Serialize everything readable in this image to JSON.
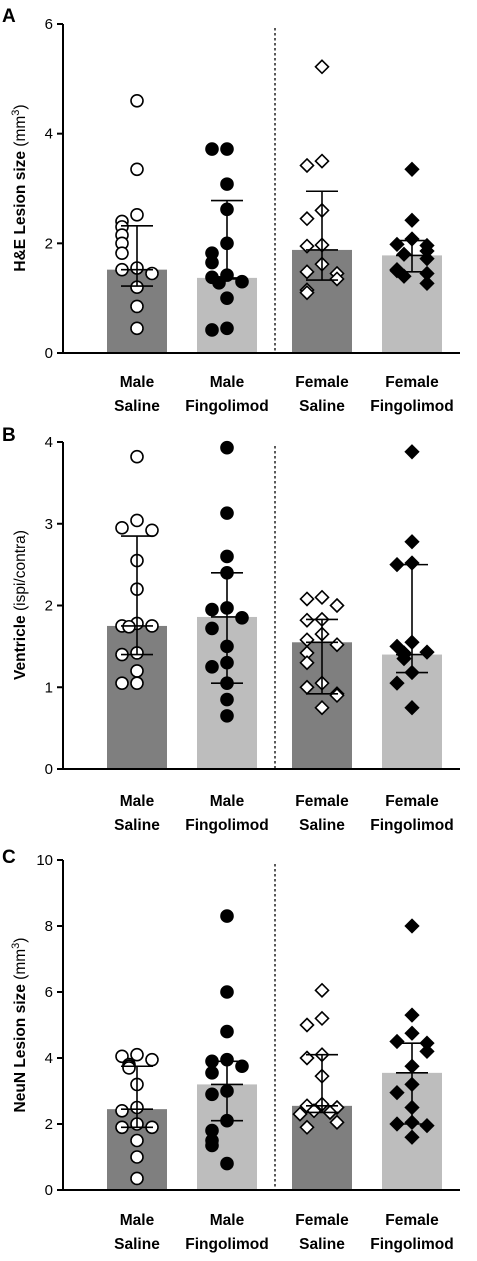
{
  "chart_data": [
    {
      "type": "bar",
      "panel": "A",
      "ylabel_bold": "H&E Lesion size",
      "ylabel_unit": "(mm",
      "ylabel_sup": "3",
      "ylabel_close": ")",
      "ylim": [
        0,
        6
      ],
      "yticks": [
        "0",
        "2",
        "4",
        "6"
      ],
      "categories": [
        {
          "line1": "Male",
          "line2": "Saline"
        },
        {
          "line1": "Male",
          "line2": "Fingolimod"
        },
        {
          "line1": "Female",
          "line2": "Saline"
        },
        {
          "line1": "Female",
          "line2": "Fingolimod"
        }
      ],
      "bar_colors": [
        "#7f7f7f",
        "#bdbdbd",
        "#7f7f7f",
        "#bdbdbd"
      ],
      "marker_styles": [
        "open-circle",
        "filled-circle",
        "open-diamond",
        "filled-diamond"
      ],
      "divider": "dotted",
      "groups": [
        {
          "median": 1.52,
          "q1": 1.22,
          "q3": 2.32,
          "points": [
            4.6,
            3.35,
            2.52,
            2.4,
            2.3,
            2.15,
            2.0,
            1.82,
            1.55,
            1.52,
            1.45,
            1.2,
            0.85,
            0.45
          ]
        },
        {
          "median": 1.37,
          "q1": 1.35,
          "q3": 2.78,
          "points": [
            3.72,
            3.72,
            3.08,
            2.62,
            2.0,
            1.82,
            1.65,
            1.42,
            1.38,
            1.3,
            1.28,
            1.0,
            0.45,
            0.42
          ]
        },
        {
          "median": 1.88,
          "q1": 1.33,
          "q3": 2.95,
          "points": [
            5.22,
            3.5,
            3.42,
            2.6,
            2.45,
            1.97,
            1.95,
            1.62,
            1.48,
            1.45,
            1.35,
            1.15,
            1.1
          ]
        },
        {
          "median": 1.78,
          "q1": 1.48,
          "q3": 2.05,
          "points": [
            3.35,
            2.42,
            2.08,
            1.98,
            1.96,
            1.86,
            1.8,
            1.72,
            1.52,
            1.5,
            1.45,
            1.4,
            1.27
          ]
        }
      ]
    },
    {
      "type": "bar",
      "panel": "B",
      "ylabel_bold": "Ventricle",
      "ylabel_unit": "(ispi/contra)",
      "ylabel_sup": "",
      "ylabel_close": "",
      "ylim": [
        0,
        4
      ],
      "yticks": [
        "0",
        "1",
        "2",
        "3",
        "4"
      ],
      "categories": [
        {
          "line1": "Male",
          "line2": "Saline"
        },
        {
          "line1": "Male",
          "line2": "Fingolimod"
        },
        {
          "line1": "Female",
          "line2": "Saline"
        },
        {
          "line1": "Female",
          "line2": "Fingolimod"
        }
      ],
      "bar_colors": [
        "#7f7f7f",
        "#bdbdbd",
        "#7f7f7f",
        "#bdbdbd"
      ],
      "marker_styles": [
        "open-circle",
        "filled-circle",
        "open-diamond",
        "filled-diamond"
      ],
      "divider": "dotted",
      "groups": [
        {
          "median": 1.75,
          "q1": 1.4,
          "q3": 2.85,
          "points": [
            3.82,
            3.04,
            2.95,
            2.92,
            2.55,
            2.2,
            1.78,
            1.75,
            1.75,
            1.74,
            1.42,
            1.4,
            1.2,
            1.05,
            1.05
          ]
        },
        {
          "median": 1.86,
          "q1": 1.05,
          "q3": 2.4,
          "points": [
            3.93,
            3.13,
            2.6,
            2.4,
            1.97,
            1.95,
            1.85,
            1.72,
            1.5,
            1.3,
            1.25,
            1.05,
            0.85,
            0.65
          ]
        },
        {
          "median": 1.55,
          "q1": 0.92,
          "q3": 1.83,
          "points": [
            2.1,
            2.08,
            2.0,
            1.83,
            1.82,
            1.65,
            1.58,
            1.52,
            1.42,
            1.3,
            1.05,
            1.0,
            0.92,
            0.9,
            0.75
          ]
        },
        {
          "median": 1.4,
          "q1": 1.18,
          "q3": 2.5,
          "points": [
            3.88,
            2.78,
            2.52,
            2.5,
            1.55,
            1.5,
            1.43,
            1.42,
            1.4,
            1.35,
            1.18,
            1.05,
            0.75
          ]
        }
      ]
    },
    {
      "type": "bar",
      "panel": "C",
      "ylabel_bold": "NeuN Lesion size",
      "ylabel_unit": "(mm",
      "ylabel_sup": "3",
      "ylabel_close": ")",
      "ylim": [
        0,
        10
      ],
      "yticks": [
        "0",
        "2",
        "4",
        "6",
        "8",
        "10"
      ],
      "categories": [
        {
          "line1": "Male",
          "line2": "Saline"
        },
        {
          "line1": "Male",
          "line2": "Fingolimod"
        },
        {
          "line1": "Female",
          "line2": "Saline"
        },
        {
          "line1": "Female",
          "line2": "Fingolimod"
        }
      ],
      "bar_colors": [
        "#7f7f7f",
        "#bdbdbd",
        "#7f7f7f",
        "#bdbdbd"
      ],
      "marker_styles": [
        "open-circle",
        "filled-circle",
        "open-diamond",
        "filled-diamond"
      ],
      "divider": "dotted",
      "groups": [
        {
          "median": 2.45,
          "q1": 1.9,
          "q3": 3.75,
          "points": [
            4.1,
            4.05,
            3.95,
            3.8,
            3.75,
            3.7,
            3.2,
            2.5,
            2.4,
            2.0,
            1.9,
            1.9,
            1.5,
            1.0,
            0.35
          ]
        },
        {
          "median": 3.2,
          "q1": 2.1,
          "q3": 3.9,
          "points": [
            8.3,
            6.0,
            4.8,
            3.95,
            3.9,
            3.75,
            3.55,
            3.0,
            2.9,
            2.1,
            1.8,
            1.5,
            1.35,
            0.8
          ]
        },
        {
          "median": 2.55,
          "q1": 2.35,
          "q3": 4.1,
          "points": [
            6.05,
            5.2,
            5.0,
            4.1,
            4.0,
            3.45,
            2.6,
            2.55,
            2.5,
            2.4,
            2.35,
            2.3,
            2.05,
            1.9
          ]
        },
        {
          "median": 3.55,
          "q1": 2.0,
          "q3": 4.45,
          "points": [
            8.0,
            5.3,
            4.75,
            4.5,
            4.45,
            4.2,
            3.75,
            3.2,
            2.95,
            2.5,
            2.05,
            2.0,
            1.95,
            1.6
          ]
        }
      ]
    }
  ]
}
